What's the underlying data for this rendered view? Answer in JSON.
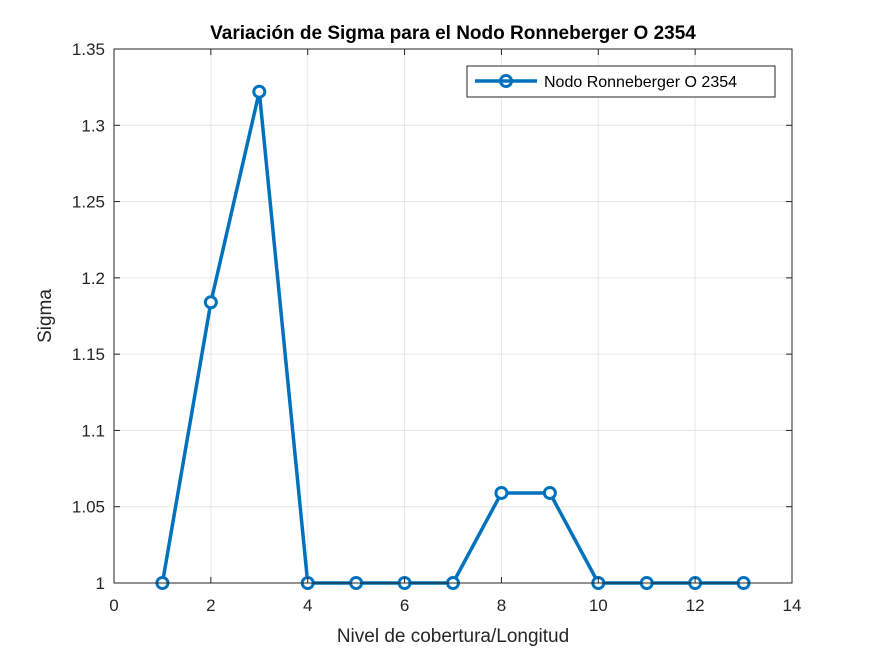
{
  "chart_data": {
    "type": "line",
    "title": "Variación de Sigma para el Nodo Ronneberger O 2354",
    "xlabel": "Nivel de cobertura/Longitud",
    "ylabel": "Sigma",
    "xlim": [
      0,
      14
    ],
    "ylim": [
      1,
      1.35
    ],
    "x_ticks": [
      "0",
      "2",
      "4",
      "6",
      "8",
      "10",
      "12",
      "14"
    ],
    "y_ticks": [
      "1",
      "1.05",
      "1.1",
      "1.15",
      "1.2",
      "1.25",
      "1.3",
      "1.35"
    ],
    "grid": true,
    "legend_position": "top-right",
    "series": [
      {
        "name": "Nodo Ronneberger O 2354",
        "color": "#0072BD",
        "marker": "circle",
        "x": [
          1,
          2,
          3,
          4,
          5,
          6,
          7,
          8,
          9,
          10,
          11,
          12,
          13
        ],
        "y": [
          1,
          1.184,
          1.322,
          1,
          1,
          1,
          1,
          1.059,
          1.059,
          1,
          1,
          1,
          1
        ]
      }
    ]
  }
}
